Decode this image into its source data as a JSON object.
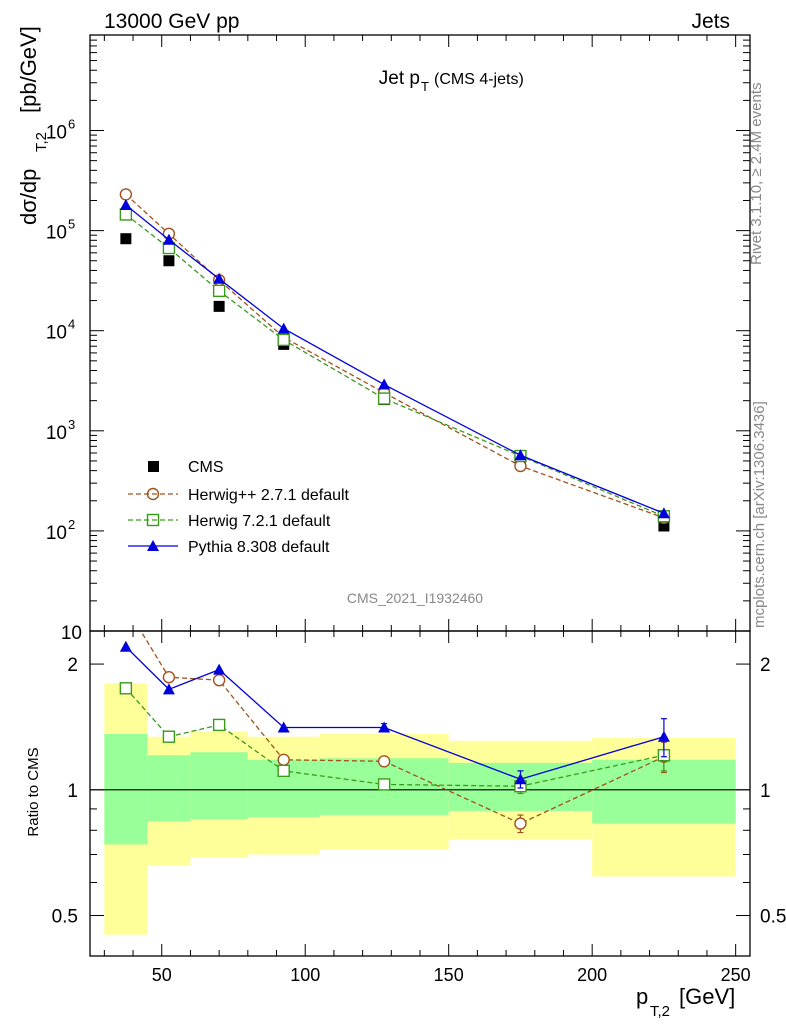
{
  "header": {
    "left": "13000 GeV pp",
    "right": "Jets"
  },
  "side_text": {
    "upper": "Rivet 3.1.10, ≥ 2.4M events",
    "lower": "mcplots.cern.ch [arXiv:1306.3436]"
  },
  "chart_data": {
    "type": "line",
    "title_main": "Jet p",
    "title_sub": "T",
    "title_extra": "(CMS 4-jets)",
    "analysis_label": "CMS_2021_I1932460",
    "ylabel_top": {
      "main": "dσ/dp",
      "sub": "T,2",
      "unit": "[pb/GeV]"
    },
    "ylabel_ratio": "Ratio to CMS",
    "xlabel": {
      "main": "p",
      "sub": "T,2",
      "unit": "[GeV]"
    },
    "xlim": [
      25,
      255
    ],
    "ylim_top": [
      10,
      9000000
    ],
    "yscale_top": "log",
    "ylim_ratio": [
      0.4,
      2.4
    ],
    "yscale_ratio": "log",
    "x_ticks": [
      "50",
      "100",
      "150",
      "200",
      "250"
    ],
    "y_ticks_top": [
      {
        "base": "10",
        "exp": ""
      },
      {
        "base": "10",
        "exp": "2"
      },
      {
        "base": "10",
        "exp": "3"
      },
      {
        "base": "10",
        "exp": "4"
      },
      {
        "base": "10",
        "exp": "5"
      },
      {
        "base": "10",
        "exp": "6"
      }
    ],
    "y_ticks_ratio": [
      "0.5",
      "1",
      "2"
    ],
    "legend_position": "lower-left",
    "x": [
      37.5,
      52.5,
      70,
      92.5,
      127.5,
      175,
      225
    ],
    "bins": [
      30,
      45,
      60,
      80,
      105,
      150,
      200,
      250
    ],
    "series": [
      {
        "name": "CMS",
        "color": "#000000",
        "style": "data",
        "values": [
          83000,
          50000,
          17500,
          7300,
          2050,
          540,
          112
        ]
      },
      {
        "name": "Herwig++ 2.7.1 default",
        "color": "#a0521d",
        "style": "dashed-circle",
        "values": [
          230000,
          93000,
          32000,
          8600,
          2400,
          445,
          135
        ]
      },
      {
        "name": "Herwig 7.2.1 default",
        "color": "#3a9a1a",
        "style": "dashed-square",
        "values": [
          145000,
          67000,
          25000,
          8100,
          2100,
          560,
          140
        ]
      },
      {
        "name": "Pythia 8.308 default",
        "color": "#0000dd",
        "style": "solid-triangle",
        "values": [
          180000,
          81000,
          33000,
          10500,
          2900,
          570,
          150
        ]
      }
    ],
    "ratio_series": [
      {
        "name": "Herwig++ 2.7.1 default",
        "values": [
          2.75,
          1.86,
          1.83,
          1.18,
          1.17,
          0.83,
          1.2
        ],
        "err": [
          0,
          0,
          0,
          0,
          0,
          0.04,
          0.1
        ]
      },
      {
        "name": "Herwig 7.2.1 default",
        "values": [
          1.75,
          1.34,
          1.43,
          1.11,
          1.03,
          1.02,
          1.21
        ],
        "err": [
          0,
          0,
          0,
          0,
          0,
          0.04,
          0.1
        ]
      },
      {
        "name": "Pythia 8.308 default",
        "values": [
          2.2,
          1.74,
          1.94,
          1.41,
          1.41,
          1.06,
          1.34
        ],
        "err": [
          0,
          0,
          0,
          0,
          0.03,
          0.05,
          0.14
        ]
      }
    ],
    "band_inner": [
      [
        0.74,
        1.36
      ],
      [
        0.84,
        1.21
      ],
      [
        0.85,
        1.23
      ],
      [
        0.86,
        1.18
      ],
      [
        0.87,
        1.19
      ],
      [
        0.89,
        1.16
      ],
      [
        0.83,
        1.18
      ]
    ],
    "band_outer": [
      [
        0.45,
        1.8
      ],
      [
        0.66,
        1.34
      ],
      [
        0.69,
        1.38
      ],
      [
        0.7,
        1.34
      ],
      [
        0.72,
        1.36
      ],
      [
        0.76,
        1.31
      ],
      [
        0.62,
        1.33
      ]
    ],
    "colors": {
      "band_inner": "#99ff99",
      "band_outer": "#ffff99"
    }
  }
}
